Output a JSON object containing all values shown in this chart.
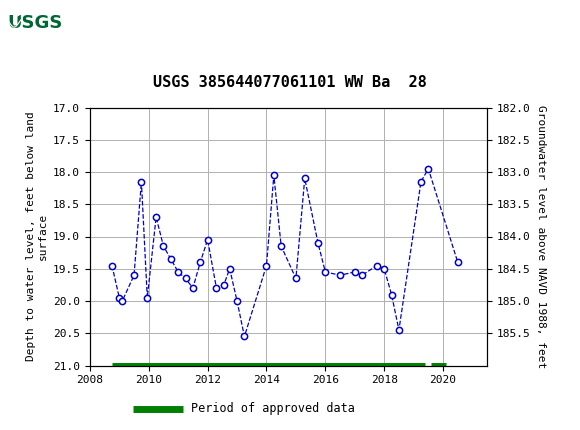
{
  "title": "USGS 385644077061101 WW Ba  28",
  "ylabel_left": "Depth to water level, feet below land\nsurface",
  "ylabel_right": "Groundwater level above NAVD 1988, feet",
  "xlim": [
    2008,
    2021.5
  ],
  "ylim_left": [
    17.0,
    21.0
  ],
  "ylim_right": [
    182.0,
    186.0
  ],
  "yticks_left": [
    17.0,
    17.5,
    18.0,
    18.5,
    19.0,
    19.5,
    20.0,
    20.5,
    21.0
  ],
  "yticks_right": [
    182.0,
    182.5,
    183.0,
    183.5,
    184.0,
    184.5,
    185.0,
    185.5
  ],
  "xticks": [
    2008,
    2010,
    2012,
    2014,
    2016,
    2018,
    2020
  ],
  "data_x": [
    2008.75,
    2009.0,
    2009.1,
    2009.5,
    2009.75,
    2009.95,
    2010.25,
    2010.5,
    2010.75,
    2011.0,
    2011.25,
    2011.5,
    2011.75,
    2012.0,
    2012.3,
    2012.55,
    2012.75,
    2013.0,
    2013.25,
    2014.0,
    2014.25,
    2014.5,
    2015.0,
    2015.3,
    2015.75,
    2016.0,
    2016.5,
    2017.0,
    2017.25,
    2017.75,
    2018.0,
    2018.25,
    2018.5,
    2019.25,
    2019.5,
    2020.5
  ],
  "data_y": [
    19.45,
    19.95,
    20.0,
    19.6,
    18.15,
    19.95,
    18.7,
    19.15,
    19.35,
    19.55,
    19.65,
    19.8,
    19.4,
    19.05,
    19.8,
    19.75,
    19.5,
    20.0,
    20.55,
    19.45,
    18.05,
    19.15,
    19.65,
    18.1,
    19.1,
    19.55,
    19.6,
    19.55,
    19.6,
    19.45,
    19.5,
    19.9,
    20.45,
    18.15,
    17.95,
    19.4
  ],
  "approved_bar_x_start": 2008.75,
  "approved_bar_x_end1": 2019.4,
  "approved_bar_x_start2": 2019.6,
  "approved_bar_x_end2": 2020.1,
  "line_color": "#0000CC",
  "marker_color": "#0000CC",
  "approved_color": "#008000",
  "background_color": "#ffffff",
  "header_color": "#006633",
  "grid_color": "#b0b0b0",
  "title_fontsize": 11,
  "axis_label_fontsize": 8,
  "tick_fontsize": 8
}
